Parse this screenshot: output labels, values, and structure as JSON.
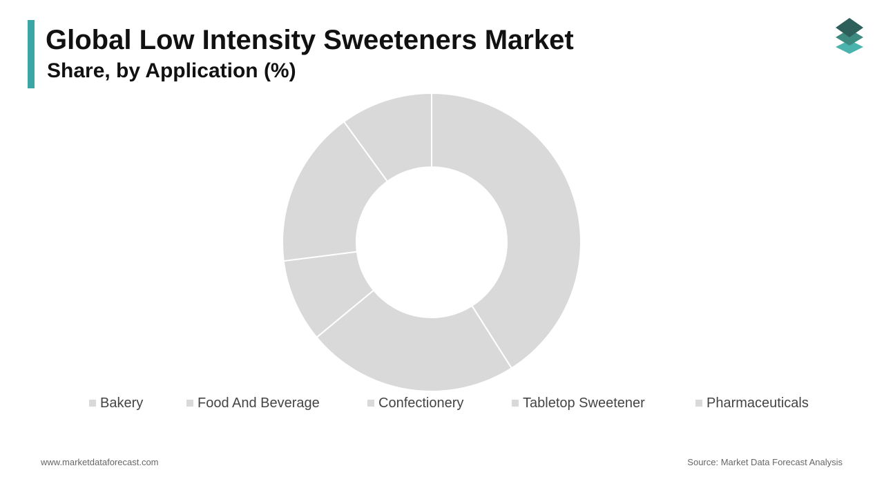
{
  "header": {
    "title": "Global Low Intensity Sweeteners Market",
    "subtitle": "Share, by Application (%)"
  },
  "logo": {
    "icon": "stacked-layers-logo",
    "colors": [
      "#2e5f5a",
      "#3d8a80",
      "#4bb3ad"
    ]
  },
  "chart_data": {
    "type": "pie",
    "variant": "donut",
    "title": "Global Low Intensity Sweeteners Market",
    "subtitle": "Share, by Application (%)",
    "slices": [
      {
        "label": "Bakery",
        "value": 41
      },
      {
        "label": "Food And Beverage",
        "value": 23
      },
      {
        "label": "Confectionery",
        "value": 9
      },
      {
        "label": "Tabletop Sweetener",
        "value": 17
      },
      {
        "label": "Pharmaceuticals",
        "value": 10
      }
    ],
    "slice_color": "#d9d9d9",
    "separator_color": "#ffffff",
    "legend_position": "bottom"
  },
  "legend": {
    "items": [
      {
        "label": "Bakery"
      },
      {
        "label": "Food And Beverage"
      },
      {
        "label": "Confectionery"
      },
      {
        "label": "Tabletop Sweetener"
      },
      {
        "label": "Pharmaceuticals"
      }
    ]
  },
  "footer": {
    "website": "www.marketdataforecast.com",
    "source": "Source: Market Data Forecast Analysis"
  }
}
